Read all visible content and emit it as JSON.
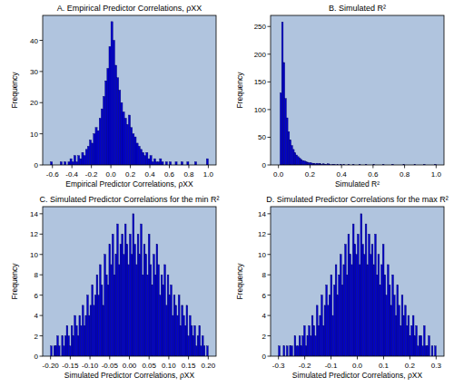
{
  "chart_data": [
    {
      "type": "histogram",
      "title": "A. Empirical Predictor Correlations, ρXX",
      "x_label": "Empirical Predictor Correlations, ρXX",
      "y_label": "Frequency",
      "color": "#0000cd",
      "grid": false,
      "xlim": [
        -0.7,
        1.08
      ],
      "ylim": [
        0,
        48
      ],
      "xticks": [
        -0.6,
        -0.4,
        -0.2,
        {
          "value": 0,
          "label": "0.0"
        },
        0.2,
        0.4,
        0.6,
        0.8,
        {
          "value": 1,
          "label": "1.0"
        }
      ],
      "yticks": [
        0,
        10,
        20,
        30,
        40
      ],
      "bins": [
        -0.62,
        -0.6,
        -0.58,
        -0.56,
        -0.54,
        -0.52,
        -0.5,
        -0.48,
        -0.46,
        -0.44,
        -0.42,
        -0.4,
        -0.38,
        -0.36,
        -0.34,
        -0.32,
        -0.3,
        -0.28,
        -0.26,
        -0.24,
        -0.22,
        -0.2,
        -0.18,
        -0.16,
        -0.14,
        -0.12,
        -0.1,
        -0.08,
        -0.06,
        -0.04,
        -0.02,
        0,
        0.02,
        0.04,
        0.06,
        0.08,
        0.1,
        0.12,
        0.14,
        0.16,
        0.18,
        0.2,
        0.22,
        0.24,
        0.26,
        0.28,
        0.3,
        0.32,
        0.34,
        0.36,
        0.38,
        0.4,
        0.42,
        0.44,
        0.46,
        0.48,
        0.5,
        0.52,
        0.54,
        0.56,
        0.58,
        0.6,
        0.62,
        0.64,
        0.66,
        0.68,
        0.7,
        0.72,
        0.74,
        0.76,
        0.78,
        0.8,
        0.82,
        0.84,
        0.86,
        0.88,
        0.9,
        0.92,
        0.94,
        0.96,
        0.98,
        1.0
      ],
      "values": [
        1,
        0,
        0,
        0,
        0,
        1,
        0,
        1,
        0,
        1,
        2,
        1,
        3,
        1,
        3,
        2,
        4,
        3,
        5,
        6,
        8,
        7,
        10,
        12,
        11,
        15,
        18,
        22,
        27,
        31,
        38,
        46,
        40,
        32,
        28,
        24,
        20,
        17,
        15,
        13,
        16,
        12,
        10,
        9,
        7,
        6,
        5,
        4,
        3,
        4,
        2,
        3,
        1,
        2,
        1,
        1,
        2,
        1,
        0,
        1,
        0,
        1,
        0,
        0,
        1,
        0,
        0,
        1,
        0,
        0,
        1,
        0,
        0,
        0,
        1,
        0,
        0,
        0,
        0,
        0,
        2
      ]
    },
    {
      "type": "histogram",
      "title": "B. Simulated R²",
      "x_label": "Simulated R²",
      "y_label": "Frequency",
      "color": "#0000cd",
      "grid": false,
      "xlim": [
        -0.05,
        1.05
      ],
      "ylim": [
        0,
        270
      ],
      "xticks": [
        {
          "value": 0,
          "label": "0.0"
        },
        0.2,
        0.4,
        0.6,
        0.8,
        {
          "value": 1,
          "label": "1.0"
        }
      ],
      "yticks": [
        0,
        50,
        100,
        150,
        200,
        250
      ],
      "bins": [
        0,
        0.01,
        0.02,
        0.03,
        0.04,
        0.05,
        0.06,
        0.07,
        0.08,
        0.09,
        0.1,
        0.11,
        0.12,
        0.13,
        0.14,
        0.15,
        0.16,
        0.17,
        0.18,
        0.19,
        0.2,
        0.21,
        0.22,
        0.23,
        0.24,
        0.25,
        0.26,
        0.27,
        0.28,
        0.29,
        0.3,
        0.31,
        0.32,
        0.33,
        0.34,
        0.35,
        0.36,
        0.37,
        0.38,
        0.39,
        0.4,
        0.41,
        0.42,
        0.43,
        0.44,
        0.45,
        0.46,
        0.47,
        0.48,
        0.49,
        0.5,
        0.51,
        0.52,
        0.53,
        0.54,
        0.55,
        0.56,
        0.57,
        0.58,
        0.59,
        0.6,
        0.61,
        0.62,
        0.63,
        0.64,
        0.65,
        0.66,
        0.67,
        0.68,
        0.69,
        0.7,
        0.71,
        0.72,
        0.73,
        0.74,
        0.75,
        0.76,
        0.77,
        0.78,
        0.79,
        0.8,
        0.81,
        0.82,
        0.83,
        0.84,
        0.85,
        0.86,
        0.87,
        0.88,
        0.89,
        0.9,
        0.91,
        0.92,
        0.93,
        0.94,
        0.95,
        0.96,
        0.97,
        0.98,
        0.99,
        1.0
      ],
      "values": [
        0,
        130,
        258,
        185,
        120,
        85,
        60,
        45,
        35,
        28,
        22,
        18,
        15,
        12,
        10,
        8,
        7,
        6,
        5,
        4,
        4,
        3,
        3,
        2,
        3,
        2,
        2,
        1,
        2,
        1,
        1,
        2,
        1,
        0,
        1,
        1,
        0,
        1,
        0,
        1,
        0,
        1,
        0,
        0,
        1,
        0,
        0,
        1,
        0,
        0,
        0,
        1,
        0,
        0,
        0,
        1,
        0,
        0,
        0,
        0,
        1,
        0,
        0,
        0,
        0,
        0,
        1,
        0,
        0,
        0,
        0,
        0,
        1,
        0,
        0,
        0,
        0,
        0,
        0,
        1,
        0,
        0,
        0,
        0,
        0,
        0,
        1,
        0,
        0,
        0,
        0,
        0,
        1,
        0,
        0,
        0,
        0,
        0,
        0,
        1
      ]
    },
    {
      "type": "histogram",
      "title": "C. Simulated Predictor Correlations for the min R²",
      "x_label": "Simulated Predictor Correlations, ρXX",
      "y_label": "Frequency",
      "color": "#0000cd",
      "grid": false,
      "xlim": [
        -0.22,
        0.22
      ],
      "ylim": [
        0,
        14.7
      ],
      "xticks": [
        {
          "value": -0.2,
          "label": "-0.20"
        },
        -0.15,
        {
          "value": -0.1,
          "label": "-0.10"
        },
        -0.05,
        {
          "value": 0,
          "label": "0.00"
        },
        0.05,
        {
          "value": 0.1,
          "label": "0.10"
        },
        0.15,
        {
          "value": 0.2,
          "label": "0.20"
        }
      ],
      "yticks": [
        0,
        2,
        4,
        6,
        8,
        10,
        12,
        14
      ],
      "bins": [
        -0.2,
        -0.196,
        -0.192,
        -0.188,
        -0.184,
        -0.18,
        -0.176,
        -0.172,
        -0.168,
        -0.164,
        -0.16,
        -0.156,
        -0.152,
        -0.148,
        -0.144,
        -0.14,
        -0.136,
        -0.132,
        -0.128,
        -0.124,
        -0.12,
        -0.116,
        -0.112,
        -0.108,
        -0.104,
        -0.1,
        -0.096,
        -0.092,
        -0.088,
        -0.084,
        -0.08,
        -0.076,
        -0.072,
        -0.068,
        -0.064,
        -0.06,
        -0.056,
        -0.052,
        -0.048,
        -0.044,
        -0.04,
        -0.036,
        -0.032,
        -0.028,
        -0.024,
        -0.02,
        -0.016,
        -0.012,
        -0.008,
        -0.004,
        0,
        0.004,
        0.008,
        0.012,
        0.016,
        0.02,
        0.024,
        0.028,
        0.032,
        0.036,
        0.04,
        0.044,
        0.048,
        0.052,
        0.056,
        0.06,
        0.064,
        0.068,
        0.072,
        0.076,
        0.08,
        0.084,
        0.088,
        0.092,
        0.096,
        0.1,
        0.104,
        0.108,
        0.112,
        0.116,
        0.12,
        0.124,
        0.128,
        0.132,
        0.136,
        0.14,
        0.144,
        0.148,
        0.152,
        0.156,
        0.16,
        0.164,
        0.168,
        0.172,
        0.176,
        0.18,
        0.184,
        0.188,
        0.192,
        0.196,
        0.2
      ],
      "values": [
        1,
        0,
        1,
        1,
        2,
        1,
        0,
        2,
        1,
        2,
        3,
        2,
        1,
        3,
        2,
        4,
        3,
        2,
        4,
        3,
        5,
        3,
        4,
        6,
        4,
        5,
        7,
        5,
        6,
        8,
        6,
        9,
        7,
        5,
        10,
        8,
        7,
        11,
        9,
        12,
        8,
        10,
        13,
        9,
        11,
        12,
        10,
        13,
        11,
        9,
        12,
        10,
        14,
        11,
        9,
        12,
        10,
        13,
        8,
        11,
        10,
        8,
        12,
        9,
        7,
        10,
        8,
        11,
        9,
        6,
        8,
        7,
        9,
        5,
        8,
        6,
        7,
        4,
        6,
        5,
        4,
        6,
        3,
        5,
        4,
        3,
        5,
        2,
        4,
        3,
        2,
        3,
        1,
        2,
        3,
        1,
        2,
        1,
        0,
        1
      ]
    },
    {
      "type": "histogram",
      "title": "D. Simulated Predictor Correlations for the max R²",
      "x_label": "Simulated Predictor Correlations, ρXX",
      "y_label": "Frequency",
      "color": "#0000cd",
      "grid": false,
      "xlim": [
        -0.33,
        0.33
      ],
      "ylim": [
        0,
        14.7
      ],
      "xticks": [
        -0.3,
        -0.2,
        -0.1,
        {
          "value": 0,
          "label": "0.0"
        },
        0.1,
        0.2,
        0.3
      ],
      "yticks": [
        0,
        2,
        4,
        6,
        8,
        10,
        12,
        14
      ],
      "bins": [
        -0.3,
        -0.294,
        -0.288,
        -0.282,
        -0.276,
        -0.27,
        -0.264,
        -0.258,
        -0.252,
        -0.246,
        -0.24,
        -0.234,
        -0.228,
        -0.222,
        -0.216,
        -0.21,
        -0.204,
        -0.198,
        -0.192,
        -0.186,
        -0.18,
        -0.174,
        -0.168,
        -0.162,
        -0.156,
        -0.15,
        -0.144,
        -0.138,
        -0.132,
        -0.126,
        -0.12,
        -0.114,
        -0.108,
        -0.102,
        -0.096,
        -0.09,
        -0.084,
        -0.078,
        -0.072,
        -0.066,
        -0.06,
        -0.054,
        -0.048,
        -0.042,
        -0.036,
        -0.03,
        -0.024,
        -0.018,
        -0.012,
        -0.006,
        0,
        0.006,
        0.012,
        0.018,
        0.024,
        0.03,
        0.036,
        0.042,
        0.048,
        0.054,
        0.06,
        0.066,
        0.072,
        0.078,
        0.084,
        0.09,
        0.096,
        0.102,
        0.108,
        0.114,
        0.12,
        0.126,
        0.132,
        0.138,
        0.144,
        0.15,
        0.156,
        0.162,
        0.168,
        0.174,
        0.18,
        0.186,
        0.192,
        0.198,
        0.204,
        0.21,
        0.216,
        0.222,
        0.228,
        0.234,
        0.24,
        0.246,
        0.252,
        0.258,
        0.264,
        0.27,
        0.276,
        0.282,
        0.288,
        0.294,
        0.3
      ],
      "values": [
        1,
        0,
        0,
        1,
        0,
        1,
        0,
        1,
        1,
        0,
        2,
        1,
        1,
        2,
        1,
        2,
        3,
        1,
        2,
        3,
        2,
        4,
        3,
        2,
        5,
        3,
        4,
        6,
        3,
        5,
        7,
        5,
        6,
        8,
        4,
        7,
        9,
        6,
        8,
        10,
        7,
        9,
        11,
        8,
        12,
        10,
        9,
        13,
        11,
        10,
        12,
        9,
        14,
        11,
        10,
        13,
        9,
        12,
        10,
        11,
        9,
        12,
        8,
        10,
        7,
        9,
        11,
        8,
        6,
        9,
        7,
        5,
        8,
        6,
        4,
        7,
        5,
        3,
        6,
        4,
        5,
        3,
        4,
        2,
        3,
        4,
        2,
        3,
        1,
        2,
        2,
        1,
        3,
        1,
        1,
        2,
        0,
        1,
        0,
        1
      ]
    }
  ]
}
